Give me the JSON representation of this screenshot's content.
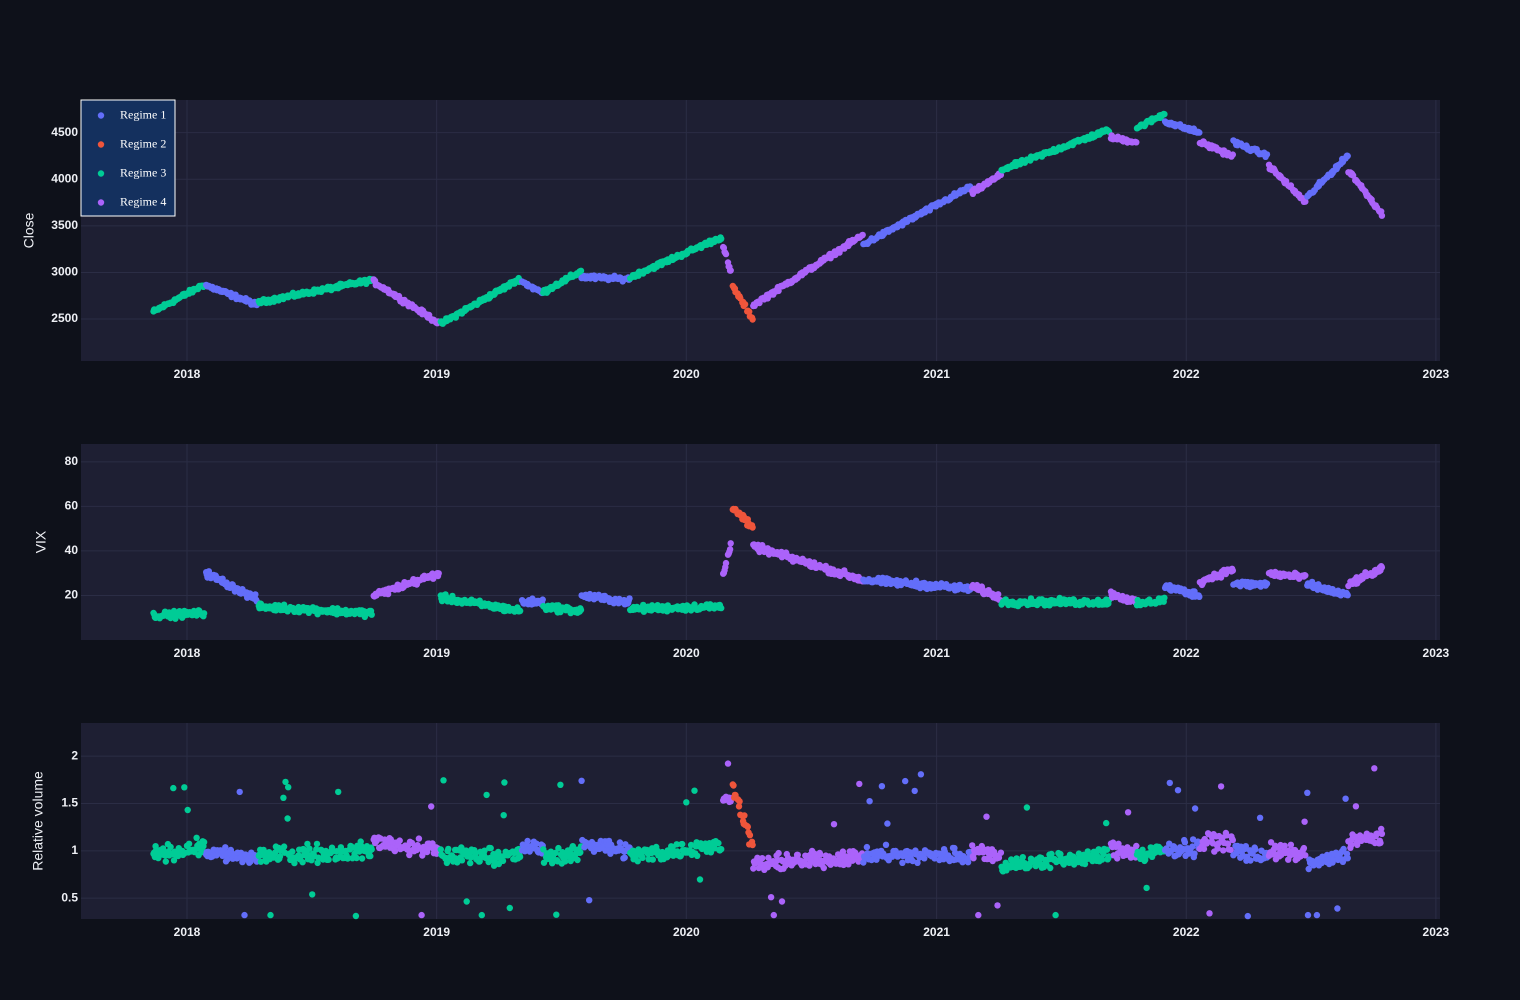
{
  "chart_data": {
    "type": "scatter",
    "x_range": [
      "2017-07-30",
      "2023-01-07"
    ],
    "x_ticks": [
      "2018",
      "2019",
      "2020",
      "2021",
      "2022",
      "2023"
    ],
    "legend_placement": "top-left",
    "grid": true,
    "series": [
      {
        "name": "Regime 1",
        "color": "#636efa"
      },
      {
        "name": "Regime 2",
        "color": "#ef553b"
      },
      {
        "name": "Regime 3",
        "color": "#00cc96"
      },
      {
        "name": "Regime 4",
        "color": "#ab63fa"
      }
    ],
    "panels": [
      {
        "ylabel": "Close",
        "ylim": [
          2050,
          4850
        ],
        "yticks": [
          "2500",
          "3000",
          "3500",
          "4000",
          "4500"
        ],
        "segments": [
          {
            "start": "2017-11-13",
            "end": "2018-01-26",
            "regime": 3,
            "y0": 2580,
            "y1": 2870
          },
          {
            "start": "2018-01-29",
            "end": "2018-04-15",
            "regime": 1,
            "y0": 2860,
            "y1": 2650
          },
          {
            "start": "2018-04-16",
            "end": "2018-09-30",
            "regime": 3,
            "y0": 2680,
            "y1": 2920
          },
          {
            "start": "2018-10-01",
            "end": "2019-01-06",
            "regime": 4,
            "y0": 2900,
            "y1": 2450
          },
          {
            "start": "2019-01-07",
            "end": "2019-05-05",
            "regime": 3,
            "y0": 2450,
            "y1": 2940
          },
          {
            "start": "2019-05-06",
            "end": "2019-06-05",
            "regime": 1,
            "y0": 2900,
            "y1": 2780
          },
          {
            "start": "2019-06-06",
            "end": "2019-07-31",
            "regime": 3,
            "y0": 2790,
            "y1": 3010
          },
          {
            "start": "2019-08-01",
            "end": "2019-10-10",
            "regime": 1,
            "y0": 2950,
            "y1": 2930
          },
          {
            "start": "2019-10-11",
            "end": "2020-02-22",
            "regime": 3,
            "y0": 2950,
            "y1": 3380
          },
          {
            "start": "2020-02-23",
            "end": "2020-03-08",
            "regime": 4,
            "y0": 3300,
            "y1": 2950
          },
          {
            "start": "2020-03-09",
            "end": "2020-04-07",
            "regime": 2,
            "y0": 2850,
            "y1": 2500
          },
          {
            "start": "2020-04-08",
            "end": "2020-09-15",
            "regime": 4,
            "y0": 2650,
            "y1": 3400
          },
          {
            "start": "2020-09-16",
            "end": "2021-02-20",
            "regime": 1,
            "y0": 3300,
            "y1": 3920
          },
          {
            "start": "2021-02-21",
            "end": "2021-04-05",
            "regime": 4,
            "y0": 3850,
            "y1": 4050
          },
          {
            "start": "2021-04-06",
            "end": "2021-09-10",
            "regime": 3,
            "y0": 4100,
            "y1": 4530
          },
          {
            "start": "2021-09-11",
            "end": "2021-10-20",
            "regime": 4,
            "y0": 4450,
            "y1": 4400
          },
          {
            "start": "2021-10-21",
            "end": "2021-11-30",
            "regime": 3,
            "y0": 4550,
            "y1": 4700
          },
          {
            "start": "2021-12-01",
            "end": "2022-01-20",
            "regime": 1,
            "y0": 4620,
            "y1": 4500
          },
          {
            "start": "2022-01-21",
            "end": "2022-03-10",
            "regime": 4,
            "y0": 4400,
            "y1": 4250
          },
          {
            "start": "2022-03-11",
            "end": "2022-04-30",
            "regime": 1,
            "y0": 4400,
            "y1": 4250
          },
          {
            "start": "2022-05-01",
            "end": "2022-06-25",
            "regime": 4,
            "y0": 4150,
            "y1": 3750
          },
          {
            "start": "2022-06-26",
            "end": "2022-08-25",
            "regime": 1,
            "y0": 3800,
            "y1": 4250
          },
          {
            "start": "2022-08-26",
            "end": "2022-10-15",
            "regime": 4,
            "y0": 4100,
            "y1": 3620
          }
        ]
      },
      {
        "ylabel": "VIX",
        "ylim": [
          0,
          88
        ],
        "yticks": [
          "20",
          "40",
          "60",
          "80"
        ],
        "segments": [
          {
            "start": "2017-11-13",
            "end": "2018-01-26",
            "regime": 3,
            "y0": 11,
            "y1": 12
          },
          {
            "start": "2018-01-29",
            "end": "2018-04-15",
            "regime": 1,
            "y0": 30,
            "y1": 18
          },
          {
            "start": "2018-04-16",
            "end": "2018-09-30",
            "regime": 3,
            "y0": 15,
            "y1": 12
          },
          {
            "start": "2018-10-01",
            "end": "2019-01-06",
            "regime": 4,
            "y0": 20,
            "y1": 30
          },
          {
            "start": "2019-01-07",
            "end": "2019-05-05",
            "regime": 3,
            "y0": 19,
            "y1": 13
          },
          {
            "start": "2019-05-06",
            "end": "2019-06-05",
            "regime": 1,
            "y0": 17,
            "y1": 17
          },
          {
            "start": "2019-06-06",
            "end": "2019-07-31",
            "regime": 3,
            "y0": 15,
            "y1": 13
          },
          {
            "start": "2019-08-01",
            "end": "2019-10-10",
            "regime": 1,
            "y0": 20,
            "y1": 17
          },
          {
            "start": "2019-10-11",
            "end": "2020-02-22",
            "regime": 3,
            "y0": 14,
            "y1": 15
          },
          {
            "start": "2020-02-23",
            "end": "2020-03-08",
            "regime": 4,
            "y0": 28,
            "y1": 45
          },
          {
            "start": "2020-03-09",
            "end": "2020-04-07",
            "regime": 2,
            "y0": 60,
            "y1": 50
          },
          {
            "start": "2020-04-08",
            "end": "2020-09-15",
            "regime": 4,
            "y0": 42,
            "y1": 27
          },
          {
            "start": "2020-09-16",
            "end": "2021-02-20",
            "regime": 1,
            "y0": 27,
            "y1": 23
          },
          {
            "start": "2021-02-21",
            "end": "2021-04-05",
            "regime": 4,
            "y0": 24,
            "y1": 19
          },
          {
            "start": "2021-04-06",
            "end": "2021-09-10",
            "regime": 3,
            "y0": 17,
            "y1": 17
          },
          {
            "start": "2021-09-11",
            "end": "2021-10-20",
            "regime": 4,
            "y0": 21,
            "y1": 17
          },
          {
            "start": "2021-10-21",
            "end": "2021-11-30",
            "regime": 3,
            "y0": 16,
            "y1": 18
          },
          {
            "start": "2021-12-01",
            "end": "2022-01-20",
            "regime": 1,
            "y0": 24,
            "y1": 20
          },
          {
            "start": "2022-01-21",
            "end": "2022-03-10",
            "regime": 4,
            "y0": 26,
            "y1": 32
          },
          {
            "start": "2022-03-11",
            "end": "2022-04-30",
            "regime": 1,
            "y0": 25,
            "y1": 25
          },
          {
            "start": "2022-05-01",
            "end": "2022-06-25",
            "regime": 4,
            "y0": 30,
            "y1": 28
          },
          {
            "start": "2022-06-26",
            "end": "2022-08-25",
            "regime": 1,
            "y0": 25,
            "y1": 20
          },
          {
            "start": "2022-08-26",
            "end": "2022-10-15",
            "regime": 4,
            "y0": 25,
            "y1": 32
          }
        ]
      },
      {
        "ylabel": "Relative volume",
        "ylim": [
          0.28,
          2.35
        ],
        "yticks": [
          "0.5",
          "1",
          "1.5",
          "2"
        ],
        "segments": [
          {
            "start": "2017-11-13",
            "end": "2018-01-26",
            "regime": 3,
            "y0": 0.95,
            "y1": 1.05
          },
          {
            "start": "2018-01-29",
            "end": "2018-04-15",
            "regime": 1,
            "y0": 1.0,
            "y1": 0.9
          },
          {
            "start": "2018-04-16",
            "end": "2018-09-30",
            "regime": 3,
            "y0": 0.95,
            "y1": 1.0
          },
          {
            "start": "2018-10-01",
            "end": "2019-01-06",
            "regime": 4,
            "y0": 1.1,
            "y1": 1.0
          },
          {
            "start": "2019-01-07",
            "end": "2019-05-05",
            "regime": 3,
            "y0": 0.95,
            "y1": 0.95
          },
          {
            "start": "2019-05-06",
            "end": "2019-06-05",
            "regime": 1,
            "y0": 1.05,
            "y1": 1.0
          },
          {
            "start": "2019-06-06",
            "end": "2019-07-31",
            "regime": 3,
            "y0": 0.95,
            "y1": 0.95
          },
          {
            "start": "2019-08-01",
            "end": "2019-10-10",
            "regime": 1,
            "y0": 1.1,
            "y1": 1.0
          },
          {
            "start": "2019-10-11",
            "end": "2020-02-22",
            "regime": 3,
            "y0": 0.95,
            "y1": 1.05
          },
          {
            "start": "2020-02-23",
            "end": "2020-03-08",
            "regime": 4,
            "y0": 1.5,
            "y1": 1.6
          },
          {
            "start": "2020-03-09",
            "end": "2020-04-07",
            "regime": 2,
            "y0": 1.7,
            "y1": 1.05
          },
          {
            "start": "2020-04-08",
            "end": "2020-09-15",
            "regime": 4,
            "y0": 0.85,
            "y1": 0.95
          },
          {
            "start": "2020-09-16",
            "end": "2021-02-20",
            "regime": 1,
            "y0": 0.95,
            "y1": 0.95
          },
          {
            "start": "2021-02-21",
            "end": "2021-04-05",
            "regime": 4,
            "y0": 1.0,
            "y1": 0.95
          },
          {
            "start": "2021-04-06",
            "end": "2021-09-10",
            "regime": 3,
            "y0": 0.85,
            "y1": 0.95
          },
          {
            "start": "2021-09-11",
            "end": "2021-10-20",
            "regime": 4,
            "y0": 1.0,
            "y1": 1.0
          },
          {
            "start": "2021-10-21",
            "end": "2021-11-30",
            "regime": 3,
            "y0": 0.95,
            "y1": 1.0
          },
          {
            "start": "2021-12-01",
            "end": "2022-01-20",
            "regime": 1,
            "y0": 1.0,
            "y1": 1.05
          },
          {
            "start": "2022-01-21",
            "end": "2022-03-10",
            "regime": 4,
            "y0": 1.1,
            "y1": 1.1
          },
          {
            "start": "2022-03-11",
            "end": "2022-04-30",
            "regime": 1,
            "y0": 1.0,
            "y1": 0.95
          },
          {
            "start": "2022-05-01",
            "end": "2022-06-25",
            "regime": 4,
            "y0": 1.0,
            "y1": 0.95
          },
          {
            "start": "2022-06-26",
            "end": "2022-08-25",
            "regime": 1,
            "y0": 0.85,
            "y1": 0.95
          },
          {
            "start": "2022-08-26",
            "end": "2022-10-15",
            "regime": 4,
            "y0": 1.1,
            "y1": 1.15
          }
        ]
      }
    ]
  }
}
